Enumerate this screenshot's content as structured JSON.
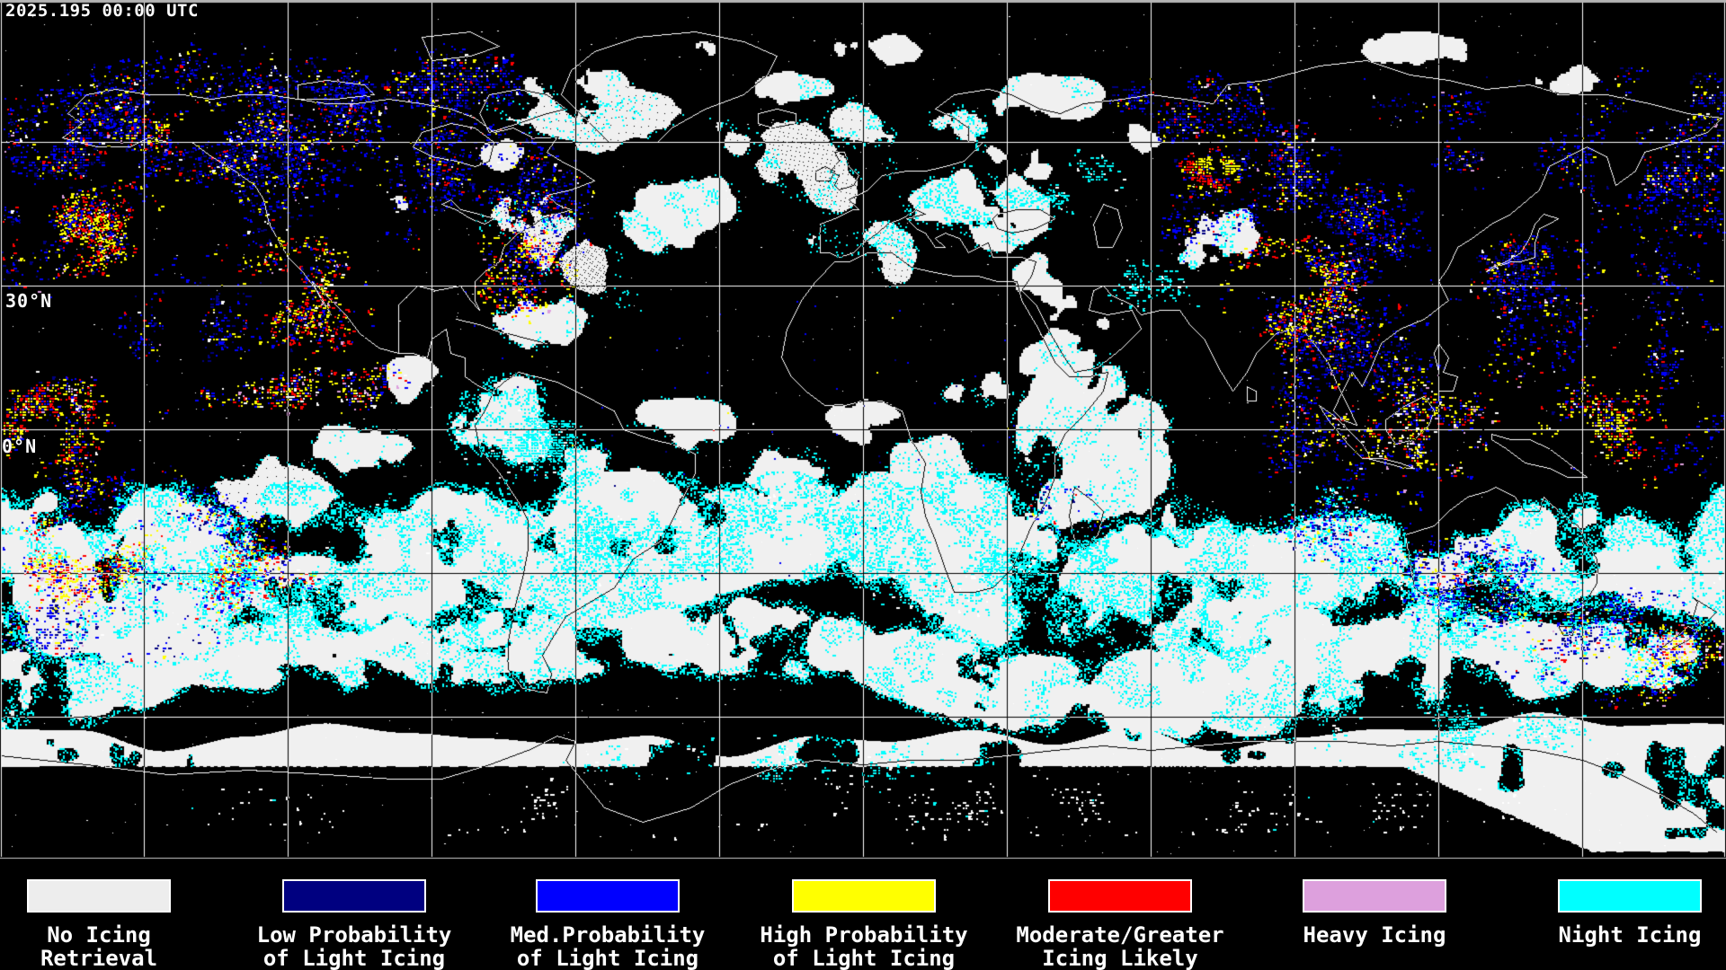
{
  "timestamp": "2025.195 00:00 UTC",
  "map": {
    "latitude_labels": [
      {
        "text": "30°N"
      },
      {
        "text": "0°N"
      }
    ]
  },
  "legend": {
    "items": [
      {
        "name": "no-icing-retrieval",
        "color": "#ededed",
        "line1": "No Icing",
        "line2": "Retrieval"
      },
      {
        "name": "low-prob-light-icing",
        "color": "#000080",
        "line1": "Low Probability",
        "line2": "of Light Icing"
      },
      {
        "name": "med-prob-light-icing",
        "color": "#0000ff",
        "line1": "Med.Probability",
        "line2": "of Light Icing"
      },
      {
        "name": "high-prob-light-icing",
        "color": "#ffff00",
        "line1": "High Probability",
        "line2": "of Light Icing"
      },
      {
        "name": "moderate-greater-icing",
        "color": "#ff0000",
        "line1": "Moderate/Greater",
        "line2": "Icing Likely"
      },
      {
        "name": "heavy-icing",
        "color": "#dda0dd",
        "line1": "Heavy Icing",
        "line2": ""
      },
      {
        "name": "night-icing",
        "color": "#00ffff",
        "line1": "Night Icing",
        "line2": ""
      }
    ]
  },
  "colors": {
    "background": "#000000",
    "grid_line": "#ffffff",
    "coastline": "#ffffff",
    "top_border": "#b4b4b4",
    "bottom_border": "#cccccc",
    "map_colors": {
      "no_icing": "#f0f0f0",
      "low_prob": "#000080",
      "med_prob": "#0000ff",
      "high_prob": "#ffff00",
      "moderate_greater": "#ff0000",
      "heavy": "#dda0dd",
      "night": "#00ffff"
    }
  }
}
